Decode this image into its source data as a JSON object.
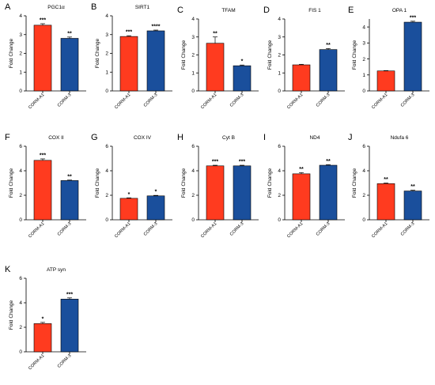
{
  "colors": {
    "CORM-A1": "#ff3b1f",
    "CORM-3": "#1a4f9c",
    "axis": "#000000"
  },
  "chart_data": [
    {
      "letter": "A",
      "type": "bar",
      "title": "PGC1α",
      "ylabel": "Fold Change",
      "ylim": [
        0,
        4
      ],
      "yticks": [
        0,
        1,
        2,
        3,
        4
      ],
      "categories": [
        "CORM-A1",
        "CORM-3"
      ],
      "values": [
        3.5,
        2.8
      ],
      "errors": [
        0.08,
        0.07
      ],
      "significance": [
        "***",
        "**"
      ]
    },
    {
      "letter": "B",
      "type": "bar",
      "title": "SIRT1",
      "ylabel": "Fold Change",
      "ylim": [
        0,
        4
      ],
      "yticks": [
        0,
        1,
        2,
        3,
        4
      ],
      "categories": [
        "CORM-A1",
        "CORM-3"
      ],
      "values": [
        2.9,
        3.2
      ],
      "errors": [
        0.04,
        0.04
      ],
      "significance": [
        "***",
        "****"
      ]
    },
    {
      "letter": "C",
      "type": "bar",
      "title": "TFAM",
      "ylabel": "Fold Change",
      "ylim": [
        0,
        4
      ],
      "yticks": [
        0,
        1,
        2,
        3,
        4
      ],
      "categories": [
        "CORM-A1",
        "CORM-3"
      ],
      "values": [
        2.65,
        1.4
      ],
      "errors": [
        0.35,
        0.04
      ],
      "significance": [
        "**",
        "*"
      ]
    },
    {
      "letter": "D",
      "type": "bar",
      "title": "FIS 1",
      "ylabel": "Fold Change",
      "ylim": [
        0,
        4
      ],
      "yticks": [
        0,
        1,
        2,
        3,
        4
      ],
      "categories": [
        "CORM-A1",
        "CORM-3"
      ],
      "values": [
        1.45,
        2.3
      ],
      "errors": [
        0.03,
        0.06
      ],
      "significance": [
        "",
        "**"
      ]
    },
    {
      "letter": "E",
      "type": "bar",
      "title": "OPA 1",
      "ylabel": "Fold Change",
      "ylim": [
        0,
        4.5
      ],
      "yticks": [
        0,
        1,
        2,
        3,
        4
      ],
      "categories": [
        "CORM-A1",
        "CORM-3"
      ],
      "values": [
        1.25,
        4.3
      ],
      "errors": [
        0.02,
        0.06
      ],
      "significance": [
        "",
        "***"
      ]
    },
    {
      "letter": "F",
      "type": "bar",
      "title": "COX II",
      "ylabel": "Fold Change",
      "ylim": [
        0,
        6
      ],
      "yticks": [
        0,
        2,
        4,
        6
      ],
      "categories": [
        "CORM-A1",
        "CORM-3"
      ],
      "values": [
        4.85,
        3.2
      ],
      "errors": [
        0.12,
        0.04
      ],
      "significance": [
        "***",
        "**"
      ]
    },
    {
      "letter": "G",
      "type": "bar",
      "title": "COX IV",
      "ylabel": "Fold Change",
      "ylim": [
        0,
        6
      ],
      "yticks": [
        0,
        2,
        4,
        6
      ],
      "categories": [
        "CORM-A1",
        "CORM-3"
      ],
      "values": [
        1.75,
        1.95
      ],
      "errors": [
        0.04,
        0.04
      ],
      "significance": [
        "*",
        "*"
      ]
    },
    {
      "letter": "H",
      "type": "bar",
      "title": "Cyt B",
      "ylabel": "Fold Change",
      "ylim": [
        0,
        6
      ],
      "yticks": [
        0,
        2,
        4,
        6
      ],
      "categories": [
        "CORM-A1",
        "CORM-3"
      ],
      "values": [
        4.4,
        4.4
      ],
      "errors": [
        0.05,
        0.05
      ],
      "significance": [
        "***",
        "***"
      ]
    },
    {
      "letter": "I",
      "type": "bar",
      "title": "ND4",
      "ylabel": "Fold Change",
      "ylim": [
        0,
        6
      ],
      "yticks": [
        0,
        2,
        4,
        6
      ],
      "categories": [
        "CORM-A1",
        "CORM-3"
      ],
      "values": [
        3.75,
        4.45
      ],
      "errors": [
        0.1,
        0.05
      ],
      "significance": [
        "**",
        "**"
      ]
    },
    {
      "letter": "J",
      "type": "bar",
      "title": "Ndufa 6",
      "ylabel": "Fold Change",
      "ylim": [
        0,
        6
      ],
      "yticks": [
        0,
        2,
        4,
        6
      ],
      "categories": [
        "CORM-A1",
        "CORM-3"
      ],
      "values": [
        2.95,
        2.35
      ],
      "errors": [
        0.05,
        0.06
      ],
      "significance": [
        "**",
        "**"
      ]
    },
    {
      "letter": "K",
      "type": "bar",
      "title": "ATP syn",
      "ylabel": "Fold Change",
      "ylim": [
        0,
        6
      ],
      "yticks": [
        0,
        2,
        4,
        6
      ],
      "categories": [
        "CORM-A1",
        "CORM-3"
      ],
      "values": [
        2.3,
        4.3
      ],
      "errors": [
        0.1,
        0.1
      ],
      "significance": [
        "*",
        "***"
      ]
    }
  ]
}
